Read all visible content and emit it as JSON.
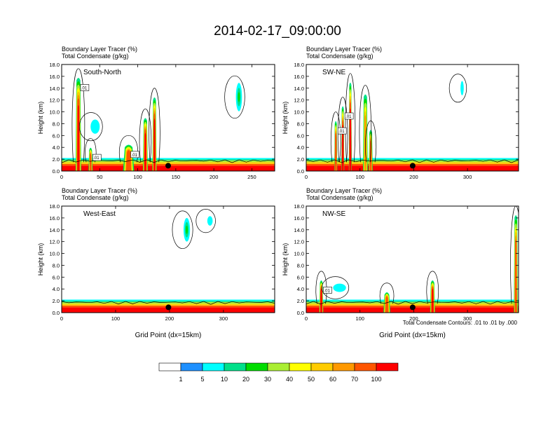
{
  "title": "2014-02-17_09:00:00",
  "contour_note": "Total Condensate Contours: .01 to .01 by .000",
  "colorbar": {
    "labels": [
      "1",
      "5",
      "10",
      "20",
      "30",
      "40",
      "50",
      "60",
      "70",
      "100"
    ],
    "colors": [
      "#ffffff",
      "#1e90ff",
      "#00ffff",
      "#00e08a",
      "#00dd00",
      "#aaee33",
      "#ffff00",
      "#ffcc00",
      "#ff9900",
      "#ff5500",
      "#ff0000"
    ]
  },
  "chart_data": [
    {
      "type": "contour",
      "panel": "top-left",
      "title_line1": "Boundary Layer Tracer   (%)",
      "title_line2": "Total Condensate   (g/kg)",
      "inside_label": "South-North",
      "ylabel": "Height (km)",
      "xlabel": "",
      "ylim": [
        0,
        18
      ],
      "yticks": [
        "0.0",
        "2.0",
        "4.0",
        "6.0",
        "8.0",
        "10.0",
        "12.0",
        "14.0",
        "16.0",
        "18.0"
      ],
      "xlim": [
        0,
        280
      ],
      "xticks": [
        0,
        50,
        100,
        150,
        200,
        250
      ],
      "xtick_labels": [
        "0",
        "50",
        "100",
        "150",
        "200",
        "250"
      ],
      "marker_x": 140,
      "contour_labels": [
        ".01",
        ".01",
        ".01"
      ],
      "tracer_features": [
        {
          "x": 22,
          "w": 8,
          "top": 15.8,
          "peak": 100
        },
        {
          "x": 38,
          "w": 6,
          "top": 4.0,
          "peak": 50
        },
        {
          "x": 88,
          "w": 16,
          "top": 4.5,
          "peak": 60
        },
        {
          "x": 110,
          "w": 7,
          "top": 9.0,
          "peak": 70
        },
        {
          "x": 122,
          "w": 6,
          "top": 12.5,
          "peak": 90
        }
      ],
      "upper_clouds": [
        {
          "x": 44,
          "y": 7.5,
          "rx": 6,
          "ry": 1.2,
          "value": 5
        },
        {
          "x": 233,
          "y": 12.5,
          "rx": 4,
          "ry": 2.4,
          "value": 20
        }
      ]
    },
    {
      "type": "contour",
      "panel": "top-right",
      "title_line1": "Boundary Layer Tracer   (%)",
      "title_line2": "Total Condensate   (g/kg)",
      "inside_label": "SW-NE",
      "ylabel": "Height (km)",
      "xlabel": "",
      "ylim": [
        0,
        18
      ],
      "yticks": [
        "0.0",
        "2.0",
        "4.0",
        "6.0",
        "8.0",
        "10.0",
        "12.0",
        "14.0",
        "16.0",
        "18.0"
      ],
      "xlim": [
        0,
        395
      ],
      "xticks": [
        0,
        100,
        200,
        300
      ],
      "xtick_labels": [
        "0",
        "100",
        "200",
        "300"
      ],
      "marker_x": 198,
      "contour_labels": [
        ".01",
        ".01"
      ],
      "tracer_features": [
        {
          "x": 55,
          "w": 6,
          "top": 8.5,
          "peak": 60
        },
        {
          "x": 68,
          "w": 6,
          "top": 11.0,
          "peak": 70
        },
        {
          "x": 82,
          "w": 6,
          "top": 15.0,
          "peak": 100
        },
        {
          "x": 110,
          "w": 10,
          "top": 13.0,
          "peak": 40
        },
        {
          "x": 120,
          "w": 8,
          "top": 7.0,
          "peak": 50
        }
      ],
      "upper_clouds": [
        {
          "x": 290,
          "y": 14.0,
          "rx": 3,
          "ry": 1.2,
          "value": 5
        }
      ]
    },
    {
      "type": "contour",
      "panel": "bottom-left",
      "title_line1": "Boundary Layer Tracer   (%)",
      "title_line2": "Total Condensate   (g/kg)",
      "inside_label": "West-East",
      "ylabel": "Height (km)",
      "xlabel": "Grid Point (dx=15km)",
      "ylim": [
        0,
        18
      ],
      "yticks": [
        "0.0",
        "2.0",
        "4.0",
        "6.0",
        "8.0",
        "10.0",
        "12.0",
        "14.0",
        "16.0",
        "18.0"
      ],
      "xlim": [
        0,
        395
      ],
      "xticks": [
        0,
        100,
        200,
        300
      ],
      "xtick_labels": [
        "0",
        "100",
        "200",
        "300"
      ],
      "marker_x": 198,
      "contour_labels": [],
      "tracer_features": [],
      "upper_clouds": [
        {
          "x": 232,
          "y": 14.0,
          "rx": 6,
          "ry": 2.0,
          "value": 20
        },
        {
          "x": 275,
          "y": 15.5,
          "rx": 5,
          "ry": 0.8,
          "value": 5
        }
      ]
    },
    {
      "type": "contour",
      "panel": "bottom-right",
      "title_line1": "Boundary Layer Tracer   (%)",
      "title_line2": "Total Condensate   (g/kg)",
      "inside_label": "NW-SE",
      "ylabel": "Height (km)",
      "xlabel": "Grid Point (dx=15km)",
      "ylim": [
        0,
        18
      ],
      "yticks": [
        "0.0",
        "2.0",
        "4.0",
        "6.0",
        "8.0",
        "10.0",
        "12.0",
        "14.0",
        "16.0",
        "18.0"
      ],
      "xlim": [
        0,
        395
      ],
      "xticks": [
        0,
        100,
        200,
        300
      ],
      "xtick_labels": [
        "0",
        "100",
        "200",
        "300"
      ],
      "marker_x": 198,
      "contour_labels": [
        ".01"
      ],
      "tracer_features": [
        {
          "x": 28,
          "w": 8,
          "top": 5.5,
          "peak": 80
        },
        {
          "x": 150,
          "w": 14,
          "top": 3.5,
          "peak": 60
        },
        {
          "x": 235,
          "w": 10,
          "top": 5.5,
          "peak": 80
        },
        {
          "x": 390,
          "w": 8,
          "top": 16.5,
          "peak": 60
        }
      ],
      "upper_clouds": [
        {
          "x": 62,
          "y": 4.2,
          "rx": 12,
          "ry": 0.7,
          "value": 5
        }
      ]
    }
  ]
}
